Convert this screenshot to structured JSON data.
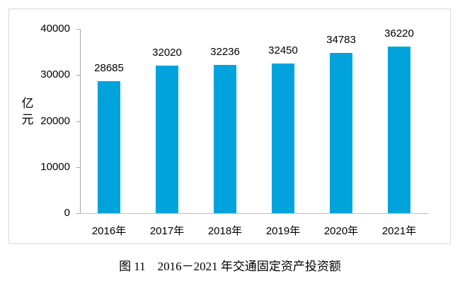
{
  "chart_data": {
    "type": "bar",
    "title": "图 11　2016－2021 年交通固定资产投资额",
    "categories": [
      "2016年",
      "2017年",
      "2018年",
      "2019年",
      "2020年",
      "2021年"
    ],
    "values": [
      28685,
      32020,
      32236,
      32450,
      34783,
      36220
    ],
    "data_labels": [
      "28685",
      "32020",
      "32236",
      "32450",
      "34783",
      "36220"
    ],
    "xlabel": "",
    "ylabel": "亿元",
    "ylim": [
      0,
      40000
    ],
    "yticks": [
      0,
      10000,
      20000,
      30000,
      40000
    ],
    "grid": false,
    "legend": null,
    "colors": {
      "bar": "#00a3dc",
      "y_axis": "#a6a6a6",
      "x_axis": "#bfbfbf",
      "frame_border": "#d9d9d9",
      "text": "#000000"
    }
  }
}
